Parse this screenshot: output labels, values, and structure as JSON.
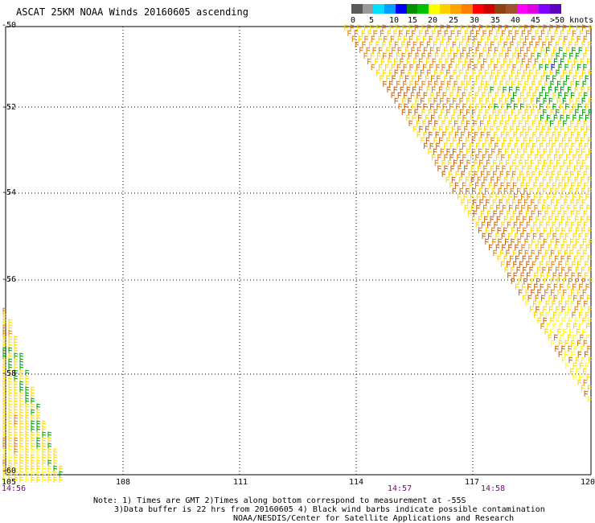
{
  "title": "ASCAT 25KM NOAA Winds 20160605 ascending",
  "legend": {
    "swatches": [
      {
        "color": "#5a5a5a"
      },
      {
        "color": "#9a9a9a"
      },
      {
        "color": "#00e0ff"
      },
      {
        "color": "#00a0ff"
      },
      {
        "color": "#0000ff"
      },
      {
        "color": "#009000"
      },
      {
        "color": "#00c000"
      },
      {
        "color": "#ffff00"
      },
      {
        "color": "#ffd000"
      },
      {
        "color": "#ffa500"
      },
      {
        "color": "#ff7f00"
      },
      {
        "color": "#ff0000"
      },
      {
        "color": "#d00000"
      },
      {
        "color": "#8b4513"
      },
      {
        "color": "#a0522d"
      },
      {
        "color": "#ff00ff"
      },
      {
        "color": "#e000e0"
      },
      {
        "color": "#8000ff"
      },
      {
        "color": "#6000c0"
      }
    ],
    "labels": [
      "0",
      "5",
      "10",
      "15",
      "20",
      "25",
      "30",
      "35",
      "40",
      "45",
      ">50 knots"
    ]
  },
  "map": {
    "lat_labels": [
      "-50",
      "-52",
      "-54",
      "-56",
      "-58",
      "-60"
    ],
    "lon_labels": [
      "105",
      "108",
      "111",
      "114",
      "117",
      "120"
    ],
    "time_labels": [
      "14:56",
      "14:57",
      "14:58"
    ],
    "colors": {
      "grid": "#000000",
      "yellow": "#ffd700",
      "orange": "#e08010",
      "dark_orange": "#c86414",
      "green": "#00a000",
      "blue": "#0000c8",
      "light_yellow": "#ffff00",
      "time_text": "#800080"
    }
  },
  "notes": [
    "Note: 1) Times are GMT 2)Times along bottom correspond to measurement at -55S",
    "3)Data buffer is 22 hrs from 20160605 4) Black wind barbs indicate possible contamination",
    "NOAA/NESDIS/Center for Satellite Applications and Research"
  ]
}
